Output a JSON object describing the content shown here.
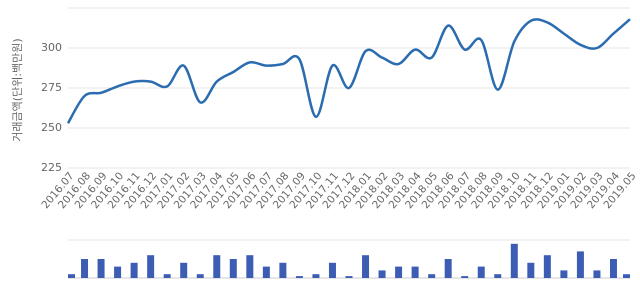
{
  "chart_data": [
    {
      "type": "line",
      "y_label": "거래금액(단위:백만원)",
      "categories": [
        "2016.07",
        "2016.08",
        "2016.09",
        "2016.10",
        "2016.11",
        "2016.12",
        "2017.01",
        "2017.02",
        "2017.03",
        "2017.04",
        "2017.05",
        "2017.06",
        "2017.07",
        "2017.08",
        "2017.09",
        "2017.10",
        "2017.11",
        "2017.12",
        "2018.01",
        "2018.02",
        "2018.03",
        "2018.04",
        "2018.05",
        "2018.06",
        "2018.07",
        "2018.08",
        "2018.09",
        "2018.10",
        "2018.11",
        "2018.12",
        "2019.01",
        "2019.02",
        "2019.03",
        "2019.04",
        "2019.05"
      ],
      "values": [
        253,
        270,
        272,
        276,
        279,
        279,
        276,
        289,
        266,
        279,
        285,
        291,
        289,
        290,
        293,
        257,
        289,
        275,
        298,
        294,
        290,
        299,
        294,
        314,
        299,
        305,
        274,
        304,
        317,
        316,
        309,
        302,
        300,
        309,
        318
      ],
      "color": "#2b6cb0",
      "ylim": [
        225,
        325
      ],
      "yticks": [
        225,
        250,
        275,
        300
      ],
      "grid": true
    },
    {
      "type": "bar",
      "values": [
        1,
        5,
        5,
        3,
        4,
        6,
        1,
        4,
        1,
        6,
        5,
        6,
        3,
        4,
        0.5,
        1,
        4,
        0.5,
        6,
        2,
        3,
        3,
        1,
        5,
        0.5,
        3,
        1,
        9,
        4,
        6,
        2,
        7,
        2,
        5,
        1
      ],
      "color": "#3d5db5",
      "ylim": [
        0,
        10
      ]
    }
  ]
}
